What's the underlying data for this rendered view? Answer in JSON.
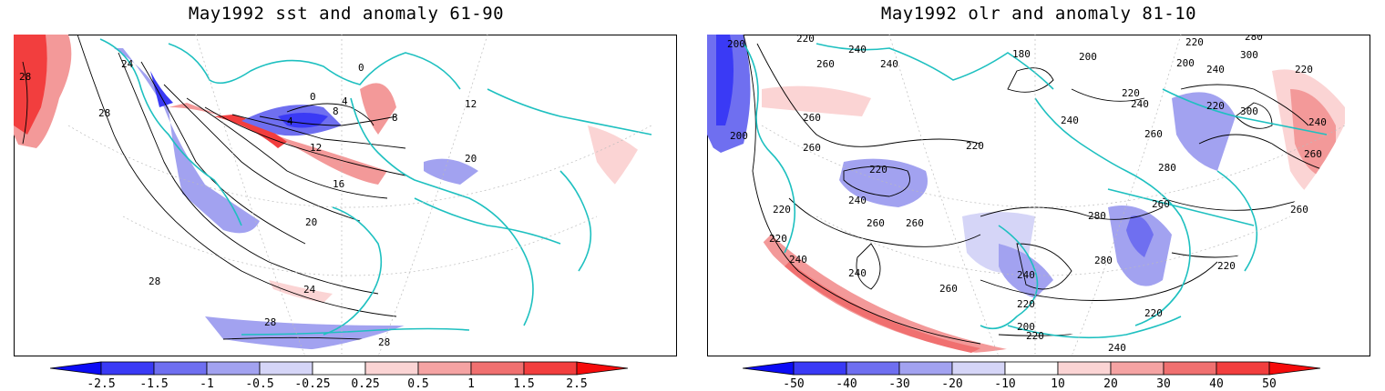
{
  "panels": [
    {
      "title": "May1992 sst and anomaly 61-90",
      "colorbar": {
        "labels": [
          "-2.5",
          "-1.5",
          "-1",
          "-0.5",
          "-0.25",
          "0.25",
          "0.5",
          "1",
          "1.5",
          "2.5"
        ],
        "colors": [
          "#0b0bf5",
          "#3a3af5",
          "#6f6ff0",
          "#a2a2f0",
          "#d5d5f7",
          "#ffffff",
          "#fbd4d4",
          "#f5a3a3",
          "#f07070",
          "#f23e3e",
          "#f50b0b"
        ]
      },
      "contour_labels": [
        "28",
        "28",
        "24",
        "20",
        "16",
        "12",
        "8",
        "4",
        "0",
        "0",
        "4",
        "8",
        "12",
        "20",
        "24",
        "28",
        "28",
        "28"
      ]
    },
    {
      "title": "May1992 olr and anomaly 81-10",
      "colorbar": {
        "labels": [
          "-50",
          "-40",
          "-30",
          "-20",
          "-10",
          "10",
          "20",
          "30",
          "40",
          "50"
        ],
        "colors": [
          "#0b0bf5",
          "#3a3af5",
          "#6f6ff0",
          "#a2a2f0",
          "#d5d5f7",
          "#ffffff",
          "#fbd4d4",
          "#f5a3a3",
          "#f07070",
          "#f23e3e",
          "#f50b0b"
        ]
      },
      "contour_labels": [
        "200",
        "220",
        "240",
        "260",
        "240",
        "180",
        "200",
        "220",
        "200",
        "220",
        "280",
        "300",
        "220",
        "240",
        "220",
        "260",
        "240",
        "300",
        "240",
        "260",
        "200",
        "260",
        "220",
        "240",
        "220",
        "240",
        "280",
        "280",
        "260",
        "260",
        "260",
        "220",
        "240",
        "280",
        "240",
        "260",
        "240",
        "220",
        "220",
        "220",
        "200",
        "220",
        "240",
        "260",
        "220",
        "260"
      ]
    }
  ],
  "colors": {
    "coast": "#1ec0c0",
    "contour": "#000000",
    "neg_anom": "#7d7df2",
    "pos_anom": "#f39999"
  }
}
